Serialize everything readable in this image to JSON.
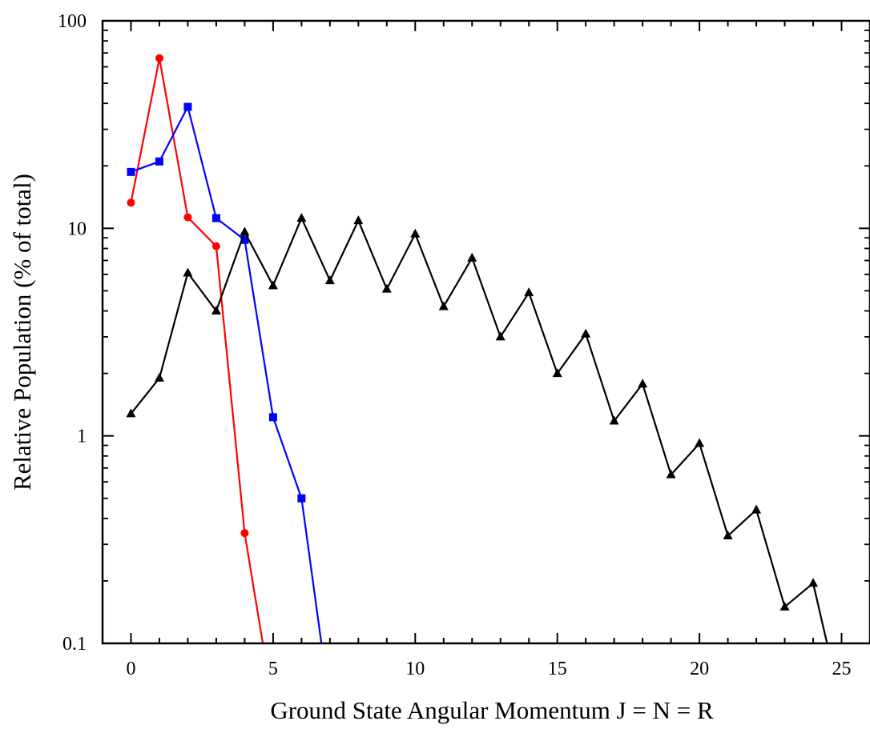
{
  "chart_data": {
    "type": "line",
    "title": "",
    "xlabel": "Ground State Angular Momentum J = N = R",
    "ylabel": "Relative Population (% of total)",
    "xlim": [
      -1,
      26
    ],
    "ylim": [
      0.1,
      100
    ],
    "y_scale": "log",
    "grid": false,
    "legend": "none",
    "x_ticks": [
      0,
      5,
      10,
      15,
      20,
      25
    ],
    "x_tick_labels": [
      "0",
      "5",
      "10",
      "15",
      "20",
      "25"
    ],
    "y_ticks": [
      0.1,
      1,
      10,
      100
    ],
    "y_tick_labels": [
      "0.1",
      "1",
      "10",
      "100"
    ],
    "series": [
      {
        "color": "#ff0000",
        "marker": "circle",
        "x": [
          0,
          1,
          2,
          3,
          4,
          5
        ],
        "y": [
          13.3,
          66,
          11.3,
          8.2,
          0.34,
          0.05
        ],
        "marked_points": 5
      },
      {
        "color": "#0000ff",
        "marker": "square",
        "x": [
          0,
          1,
          2,
          3,
          4,
          5,
          6,
          7
        ],
        "y": [
          18.7,
          21,
          38.5,
          11.2,
          8.8,
          1.23,
          0.5,
          0.05
        ],
        "marked_points": 7
      },
      {
        "color": "#000000",
        "marker": "triangle",
        "x": [
          0,
          1,
          2,
          3,
          4,
          5,
          6,
          7,
          8,
          9,
          10,
          11,
          12,
          13,
          14,
          15,
          16,
          17,
          18,
          19,
          20,
          21,
          22,
          23,
          24,
          25
        ],
        "y": [
          1.28,
          1.9,
          6.1,
          4.0,
          9.6,
          5.3,
          11.2,
          5.6,
          10.9,
          5.1,
          9.4,
          4.2,
          7.2,
          3.0,
          4.9,
          2.0,
          3.1,
          1.18,
          1.78,
          0.65,
          0.92,
          0.33,
          0.44,
          0.15,
          0.195,
          0.05
        ],
        "marked_points": 25
      }
    ]
  }
}
